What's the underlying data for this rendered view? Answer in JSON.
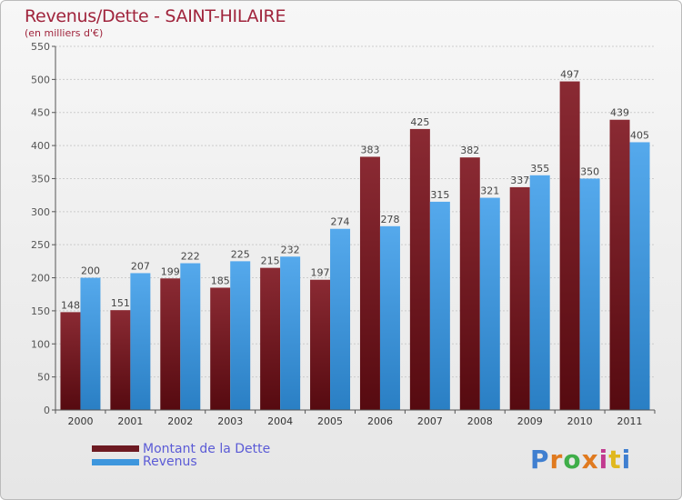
{
  "chart_data": {
    "type": "bar",
    "title": "Revenus/Dette - SAINT-HILAIRE",
    "subtitle": "(en milliers d'€)",
    "categories": [
      "2000",
      "2001",
      "2002",
      "2003",
      "2004",
      "2005",
      "2006",
      "2007",
      "2008",
      "2009",
      "2010",
      "2011"
    ],
    "series": [
      {
        "name": "Montant de la Dette",
        "color": "#6d1a22",
        "values": [
          148,
          151,
          199,
          185,
          215,
          197,
          383,
          425,
          382,
          337,
          497,
          439
        ]
      },
      {
        "name": "Revenus",
        "color": "#3d96dd",
        "values": [
          200,
          207,
          222,
          225,
          232,
          274,
          278,
          315,
          321,
          355,
          350,
          405
        ]
      }
    ],
    "ylim": [
      0,
      550
    ],
    "yticks": [
      0,
      50,
      100,
      150,
      200,
      250,
      300,
      350,
      400,
      450,
      500,
      550
    ],
    "grid": true,
    "legend": "bottom-left"
  },
  "logo": {
    "letters": [
      "P",
      "r",
      "o",
      "x",
      "i",
      "t",
      "i"
    ],
    "colors": [
      "#3f7fd0",
      "#e07a1f",
      "#3fae49",
      "#e07a1f",
      "#c23a8f",
      "#e0b81f",
      "#3f7fd0"
    ]
  }
}
